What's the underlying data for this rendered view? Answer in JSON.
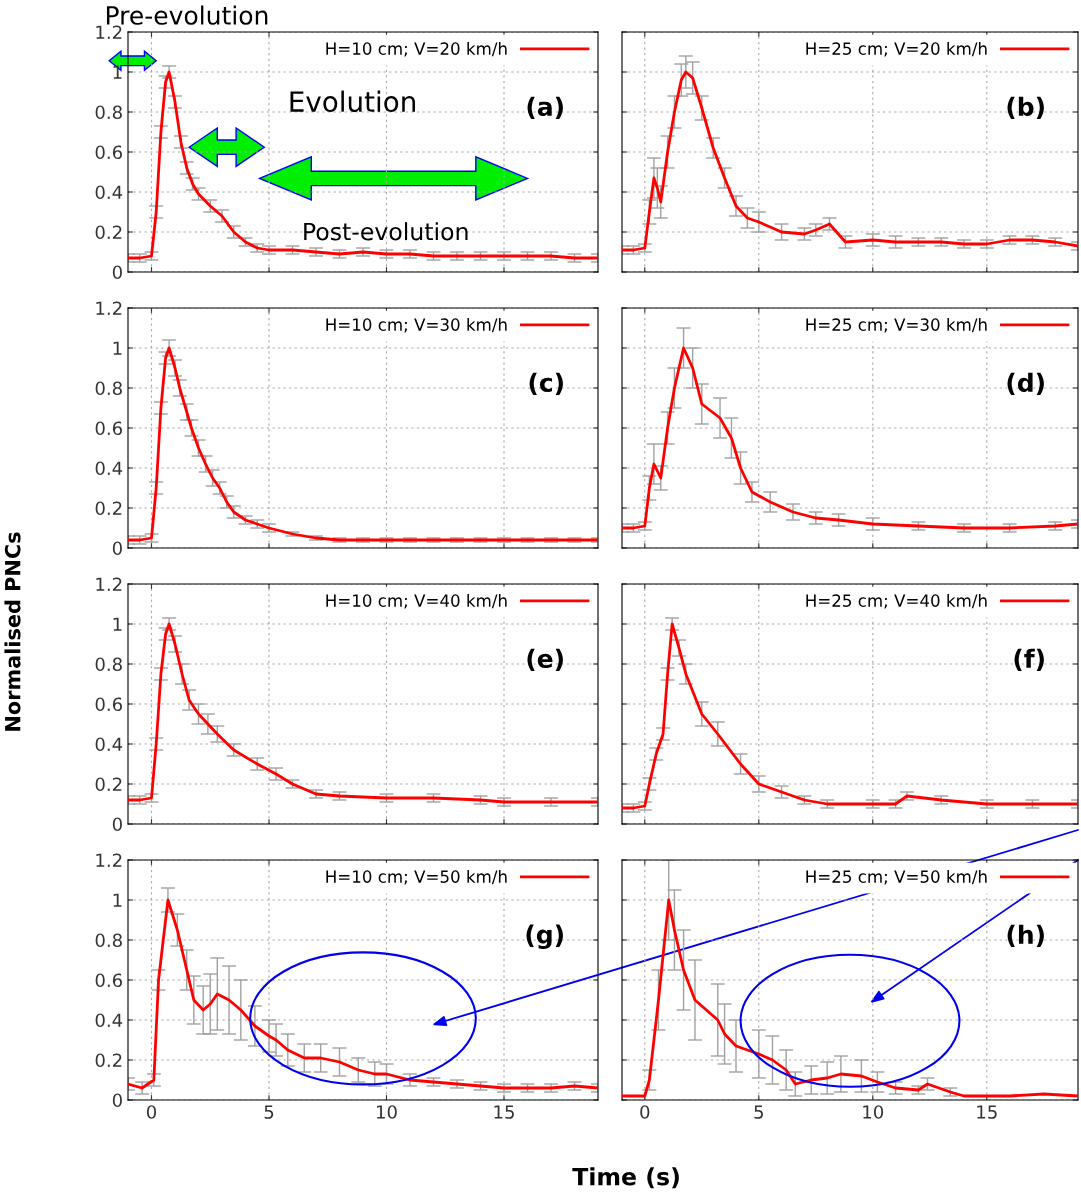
{
  "chart_data": [
    {
      "type": "line",
      "annotations": [
        "(a)",
        "Evolution",
        "Post-evolution",
        "Pre-evolution"
      ],
      "xlim": [
        -1,
        19
      ],
      "ylim": [
        0,
        1.2
      ],
      "xticks": [
        0,
        5,
        10,
        15
      ],
      "yticks": [
        0,
        0.2,
        0.4,
        0.6,
        0.8,
        1,
        1.2
      ],
      "grid": true,
      "legend": "top right",
      "tick_labels": "y",
      "line_style": "solid",
      "series": [
        {
          "name": "H=10 cm; V=20 km/h",
          "color": "#ff0000",
          "x": [
            -1,
            -0.5,
            0,
            0.2,
            0.4,
            0.6,
            0.75,
            1,
            1.25,
            1.5,
            1.75,
            2,
            2.5,
            3,
            3.5,
            4,
            4.5,
            5,
            6,
            7,
            8,
            9,
            10,
            11,
            12,
            13,
            14,
            15,
            16,
            17,
            18,
            19
          ],
          "values": [
            0.07,
            0.07,
            0.08,
            0.3,
            0.7,
            0.95,
            1.0,
            0.85,
            0.65,
            0.52,
            0.44,
            0.39,
            0.33,
            0.28,
            0.2,
            0.15,
            0.12,
            0.11,
            0.11,
            0.1,
            0.09,
            0.1,
            0.09,
            0.09,
            0.08,
            0.08,
            0.08,
            0.08,
            0.08,
            0.08,
            0.07,
            0.07
          ],
          "errors": [
            0.02,
            0.02,
            0.02,
            0.03,
            0.03,
            0.03,
            0.03,
            0.03,
            0.03,
            0.03,
            0.03,
            0.03,
            0.03,
            0.03,
            0.03,
            0.02,
            0.02,
            0.02,
            0.02,
            0.02,
            0.02,
            0.02,
            0.02,
            0.02,
            0.02,
            0.02,
            0.02,
            0.02,
            0.02,
            0.02,
            0.02,
            0.02
          ]
        }
      ]
    },
    {
      "type": "line",
      "annotations": [
        "(b)"
      ],
      "xlim": [
        -1,
        19
      ],
      "ylim": [
        0,
        1.2
      ],
      "xticks": [
        0,
        5,
        10,
        15
      ],
      "yticks": [
        0,
        0.2,
        0.4,
        0.6,
        0.8,
        1,
        1.2
      ],
      "grid": true,
      "legend": "top right",
      "tick_labels": false,
      "line_style": "solid",
      "series": [
        {
          "name": "H=25 cm; V=20 km/h",
          "color": "#ff0000",
          "x": [
            -1,
            -0.5,
            0,
            0.2,
            0.4,
            0.55,
            0.7,
            1.0,
            1.3,
            1.6,
            1.8,
            2.1,
            2.5,
            3,
            3.5,
            4,
            4.5,
            5,
            6,
            7,
            7.5,
            8.1,
            8.8,
            10,
            11,
            12,
            13,
            14,
            15,
            16,
            17,
            18,
            19
          ],
          "values": [
            0.11,
            0.11,
            0.12,
            0.3,
            0.47,
            0.42,
            0.35,
            0.6,
            0.8,
            0.96,
            1.0,
            0.97,
            0.82,
            0.62,
            0.47,
            0.33,
            0.27,
            0.25,
            0.2,
            0.19,
            0.21,
            0.24,
            0.15,
            0.16,
            0.15,
            0.15,
            0.15,
            0.14,
            0.14,
            0.16,
            0.16,
            0.15,
            0.13
          ],
          "errors": [
            0.02,
            0.02,
            0.02,
            0.06,
            0.1,
            0.1,
            0.08,
            0.08,
            0.08,
            0.08,
            0.08,
            0.08,
            0.06,
            0.05,
            0.05,
            0.05,
            0.05,
            0.05,
            0.04,
            0.03,
            0.03,
            0.03,
            0.03,
            0.03,
            0.03,
            0.02,
            0.02,
            0.02,
            0.02,
            0.02,
            0.02,
            0.02,
            0.02
          ]
        }
      ]
    },
    {
      "type": "line",
      "annotations": [
        "(c)"
      ],
      "xlim": [
        -1,
        19
      ],
      "ylim": [
        0,
        1.2
      ],
      "xticks": [
        0,
        5,
        10,
        15
      ],
      "yticks": [
        0,
        0.2,
        0.4,
        0.6,
        0.8,
        1,
        1.2
      ],
      "grid": true,
      "legend": "top right",
      "tick_labels": "y",
      "line_style": "solid",
      "series": [
        {
          "name": "H=10 cm; V=30 km/h",
          "color": "#ff0000",
          "x": [
            -1,
            -0.5,
            0,
            0.2,
            0.4,
            0.6,
            0.75,
            1,
            1.2,
            1.5,
            1.7,
            2,
            2.3,
            2.6,
            2.9,
            3.2,
            3.5,
            4,
            4.5,
            5,
            6,
            7,
            8,
            9,
            10,
            11,
            12,
            13,
            14,
            15,
            16,
            17,
            18,
            19
          ],
          "values": [
            0.04,
            0.04,
            0.05,
            0.3,
            0.7,
            0.95,
            1.0,
            0.9,
            0.8,
            0.68,
            0.6,
            0.5,
            0.42,
            0.35,
            0.3,
            0.23,
            0.18,
            0.14,
            0.12,
            0.1,
            0.07,
            0.05,
            0.04,
            0.04,
            0.04,
            0.04,
            0.04,
            0.04,
            0.04,
            0.04,
            0.04,
            0.04,
            0.04,
            0.04
          ],
          "errors": [
            0.02,
            0.02,
            0.02,
            0.03,
            0.03,
            0.03,
            0.04,
            0.04,
            0.04,
            0.04,
            0.04,
            0.04,
            0.04,
            0.04,
            0.03,
            0.03,
            0.03,
            0.02,
            0.02,
            0.02,
            0.01,
            0.01,
            0.01,
            0.01,
            0.01,
            0.01,
            0.01,
            0.01,
            0.01,
            0.01,
            0.01,
            0.01,
            0.01,
            0.01
          ]
        }
      ]
    },
    {
      "type": "line",
      "annotations": [
        "(d)"
      ],
      "xlim": [
        -1,
        19
      ],
      "ylim": [
        0,
        1.2
      ],
      "xticks": [
        0,
        5,
        10,
        15
      ],
      "yticks": [
        0,
        0.2,
        0.4,
        0.6,
        0.8,
        1,
        1.2
      ],
      "grid": true,
      "legend": "top right",
      "tick_labels": false,
      "line_style": "solid",
      "series": [
        {
          "name": "H=25 cm; V=30 km/h",
          "color": "#ff0000",
          "x": [
            -1,
            -0.5,
            0,
            0.2,
            0.4,
            0.7,
            1.0,
            1.3,
            1.7,
            2.1,
            2.5,
            3.3,
            3.8,
            4.2,
            4.7,
            5.5,
            6.5,
            7.5,
            8.5,
            10,
            12,
            14,
            16,
            18,
            19
          ],
          "values": [
            0.1,
            0.1,
            0.11,
            0.3,
            0.42,
            0.35,
            0.6,
            0.8,
            1.0,
            0.9,
            0.72,
            0.65,
            0.55,
            0.4,
            0.28,
            0.23,
            0.18,
            0.15,
            0.14,
            0.12,
            0.11,
            0.1,
            0.1,
            0.11,
            0.12
          ],
          "errors": [
            0.02,
            0.02,
            0.02,
            0.06,
            0.1,
            0.06,
            0.08,
            0.1,
            0.1,
            0.1,
            0.1,
            0.1,
            0.1,
            0.08,
            0.05,
            0.05,
            0.04,
            0.03,
            0.03,
            0.03,
            0.02,
            0.02,
            0.02,
            0.02,
            0.02
          ]
        }
      ]
    },
    {
      "type": "line",
      "ylabel": "Normalised PNCs",
      "annotations": [
        "(e)"
      ],
      "xlim": [
        -1,
        19
      ],
      "ylim": [
        0,
        1.2
      ],
      "xticks": [
        0,
        5,
        10,
        15
      ],
      "yticks": [
        0,
        0.2,
        0.4,
        0.6,
        0.8,
        1,
        1.2
      ],
      "grid": true,
      "legend": "top right",
      "tick_labels": "y",
      "line_style": "solid",
      "series": [
        {
          "name": "H=10 cm; V=40 km/h",
          "color": "#ff0000",
          "x": [
            -1,
            -0.5,
            0,
            0.2,
            0.4,
            0.6,
            0.75,
            1,
            1.3,
            1.6,
            2,
            2.4,
            2.8,
            3.5,
            4.5,
            5.3,
            6,
            7,
            8,
            10,
            12,
            14,
            15,
            17,
            19
          ],
          "values": [
            0.12,
            0.12,
            0.13,
            0.4,
            0.75,
            0.95,
            1.0,
            0.9,
            0.75,
            0.62,
            0.55,
            0.5,
            0.45,
            0.37,
            0.3,
            0.25,
            0.2,
            0.15,
            0.14,
            0.13,
            0.13,
            0.12,
            0.11,
            0.11,
            0.11
          ],
          "errors": [
            0.02,
            0.02,
            0.02,
            0.03,
            0.03,
            0.03,
            0.03,
            0.04,
            0.05,
            0.05,
            0.05,
            0.05,
            0.04,
            0.03,
            0.03,
            0.03,
            0.02,
            0.02,
            0.02,
            0.02,
            0.02,
            0.02,
            0.02,
            0.02,
            0.02
          ]
        }
      ]
    },
    {
      "type": "line",
      "annotations": [
        "(f)"
      ],
      "xlim": [
        -1,
        19
      ],
      "ylim": [
        0,
        1.2
      ],
      "xticks": [
        0,
        5,
        10,
        15
      ],
      "yticks": [
        0,
        0.2,
        0.4,
        0.6,
        0.8,
        1,
        1.2
      ],
      "grid": true,
      "legend": "top right",
      "tick_labels": false,
      "line_style": "solid",
      "series": [
        {
          "name": "H=25 cm; V=40 km/h",
          "color": "#ff0000",
          "x": [
            -1,
            -0.5,
            0,
            0.2,
            0.5,
            0.8,
            1.0,
            1.2,
            1.5,
            1.8,
            2.5,
            3.2,
            4.2,
            5,
            6,
            7,
            8,
            10,
            11,
            11.5,
            13,
            15,
            17,
            19
          ],
          "values": [
            0.08,
            0.08,
            0.09,
            0.2,
            0.35,
            0.45,
            0.75,
            1.0,
            0.88,
            0.75,
            0.55,
            0.45,
            0.3,
            0.2,
            0.16,
            0.12,
            0.1,
            0.1,
            0.1,
            0.14,
            0.12,
            0.1,
            0.1,
            0.1
          ],
          "errors": [
            0.02,
            0.02,
            0.02,
            0.03,
            0.03,
            0.03,
            0.03,
            0.03,
            0.04,
            0.05,
            0.06,
            0.06,
            0.05,
            0.04,
            0.03,
            0.02,
            0.02,
            0.02,
            0.02,
            0.02,
            0.02,
            0.02,
            0.02,
            0.02
          ]
        }
      ]
    },
    {
      "type": "line",
      "annotations": [
        "(g)"
      ],
      "xlim": [
        -1,
        19
      ],
      "ylim": [
        0,
        1.2
      ],
      "xticks": [
        0,
        5,
        10,
        15
      ],
      "yticks": [
        0,
        0.2,
        0.4,
        0.6,
        0.8,
        1,
        1.2
      ],
      "grid": true,
      "legend": "top right",
      "line_style": "solid",
      "series": [
        {
          "name": "H=10 cm; V=50 km/h",
          "color": "#ff0000",
          "x": [
            -1,
            -0.4,
            0.1,
            0.3,
            0.7,
            1.1,
            1.5,
            1.8,
            2.2,
            2.5,
            2.8,
            3.3,
            3.8,
            4.4,
            5,
            5.3,
            5.8,
            6.5,
            7.2,
            8,
            8.8,
            9.5,
            10,
            11,
            12,
            13,
            14,
            15,
            16,
            17,
            18,
            19
          ],
          "values": [
            0.08,
            0.06,
            0.1,
            0.6,
            1.0,
            0.85,
            0.65,
            0.5,
            0.45,
            0.48,
            0.53,
            0.5,
            0.45,
            0.37,
            0.32,
            0.3,
            0.25,
            0.21,
            0.21,
            0.19,
            0.15,
            0.13,
            0.13,
            0.1,
            0.09,
            0.08,
            0.07,
            0.06,
            0.06,
            0.06,
            0.07,
            0.06
          ],
          "errors": [
            0.03,
            0.03,
            0.03,
            0.05,
            0.06,
            0.08,
            0.1,
            0.12,
            0.12,
            0.15,
            0.18,
            0.17,
            0.15,
            0.1,
            0.08,
            0.08,
            0.08,
            0.07,
            0.07,
            0.07,
            0.06,
            0.06,
            0.05,
            0.03,
            0.02,
            0.02,
            0.02,
            0.02,
            0.02,
            0.02,
            0.02,
            0.02
          ]
        }
      ]
    },
    {
      "type": "line",
      "xlabel": "Time (s)",
      "annotations": [
        "(h)"
      ],
      "xlim": [
        -1,
        19
      ],
      "ylim": [
        0,
        1.2
      ],
      "xticks": [
        0,
        5,
        10,
        15
      ],
      "yticks": [
        0,
        0.2,
        0.4,
        0.6,
        0.8,
        1,
        1.2
      ],
      "grid": true,
      "legend": "top right",
      "tick_labels": "x",
      "line_style": "solid",
      "series": [
        {
          "name": "H=25 cm; V=50 km/h",
          "color": "#ff0000",
          "x": [
            -1,
            -0.5,
            0,
            0.2,
            0.6,
            1.05,
            1.3,
            1.7,
            2.2,
            3.2,
            3.5,
            4,
            5,
            5.6,
            6.2,
            6.6,
            7.3,
            8,
            8.6,
            9.5,
            10.2,
            11,
            12,
            12.4,
            13.4,
            14,
            16,
            17.5,
            19
          ],
          "values": [
            0.02,
            0.02,
            0.02,
            0.1,
            0.5,
            1.0,
            0.85,
            0.65,
            0.5,
            0.4,
            0.33,
            0.27,
            0.23,
            0.2,
            0.15,
            0.08,
            0.1,
            0.11,
            0.13,
            0.12,
            0.09,
            0.06,
            0.05,
            0.08,
            0.04,
            0.02,
            0.02,
            0.03,
            0.02
          ],
          "errors": [
            null,
            null,
            null,
            0.05,
            0.15,
            0.2,
            0.2,
            0.2,
            0.2,
            0.18,
            0.15,
            0.13,
            0.12,
            0.12,
            0.1,
            0.06,
            0.07,
            0.08,
            0.09,
            0.08,
            0.05,
            0.03,
            0.02,
            0.03,
            0.02,
            null,
            null,
            null,
            null
          ]
        }
      ]
    }
  ]
}
